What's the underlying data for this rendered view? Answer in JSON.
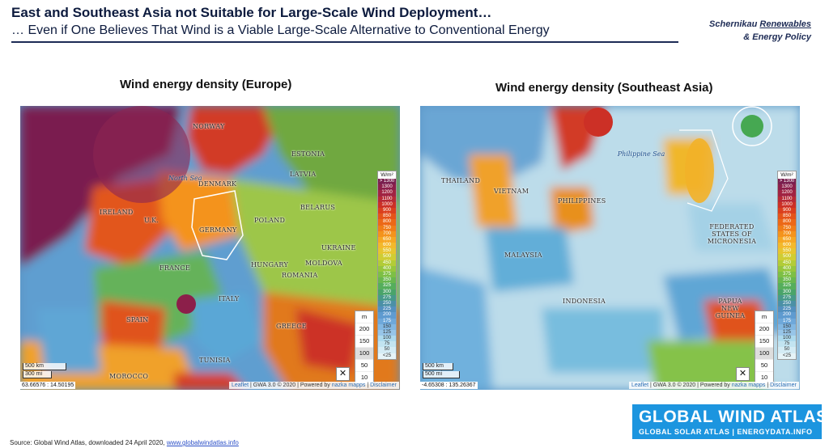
{
  "header": {
    "title": "East and Southeast Asia not Suitable for Large-Scale Wind Deployment…",
    "subtitle": "… Even if One Believes That Wind is a Viable Large-Scale Alternative to Conventional Energy",
    "brand_line1_prefix": "Schernikau ",
    "brand_line1_link": "Renewables",
    "brand_line2": "& Energy Policy"
  },
  "panels": {
    "europe": {
      "title": "Wind energy density (Europe)",
      "labels": [
        "NORWAY",
        "ESTONIA",
        "LATVIA",
        "DENMARK",
        "IRELAND",
        "U.K.",
        "BELARUS",
        "POLAND",
        "GERMANY",
        "UKRAINE",
        "FRANCE",
        "MOLDOVA",
        "HUNGARY",
        "ROMANIA",
        "ITALY",
        "SPAIN",
        "GREECE",
        "TUNISIA",
        "MOROCCO"
      ],
      "seas": [
        "North Sea"
      ],
      "coords": "63.66576 : 14.50195",
      "scale_km": "500 km",
      "scale_mi": "300 mi"
    },
    "asia": {
      "title": "Wind energy density (Southeast Asia)",
      "labels": [
        "THAILAND",
        "VIETNAM",
        "PHILIPPINES",
        "MALAYSIA",
        "INDONESIA",
        "FEDERATED STATES OF MICRONESIA",
        "PAPUA NEW GUINEA"
      ],
      "seas": [
        "Philippine Sea"
      ],
      "coords": "-4.65308 : 135.26367",
      "scale_km": "500 km",
      "scale_mi": "500 mi"
    }
  },
  "legend": {
    "unit": "W/m²",
    "values": [
      "> 1300",
      "1300",
      "1200",
      "1100",
      "1000",
      "900",
      "850",
      "800",
      "750",
      "700",
      "650",
      "600",
      "550",
      "500",
      "450",
      "400",
      "375",
      "350",
      "325",
      "300",
      "275",
      "250",
      "225",
      "200",
      "175",
      "150",
      "125",
      "100",
      "75",
      "50",
      "<25"
    ],
    "colors": [
      "#7a1f4f",
      "#8c1f4a",
      "#a12342",
      "#b82a35",
      "#cc3026",
      "#db3f1d",
      "#e55419",
      "#ec6817",
      "#f07d18",
      "#f4931c",
      "#f6a722",
      "#f3b92b",
      "#e6c52f",
      "#cfcd33",
      "#b2cc37",
      "#96c63c",
      "#7dbf45",
      "#68b74f",
      "#55ae5c",
      "#4aa46a",
      "#47998a",
      "#4b90a6",
      "#5390bf",
      "#5f9bd0",
      "#6ea8da",
      "#82b7e2",
      "#97c5e8",
      "#addaee",
      "#c2e4f1",
      "#d4ecf5",
      "#e6f4f8"
    ]
  },
  "heights": {
    "label": "m",
    "values": [
      "200",
      "150",
      "100",
      "50",
      "10"
    ],
    "selected": "100"
  },
  "attribution": {
    "leaflet": "Leaflet",
    "gwa": "GWA 3.0 © 2020",
    "powered": "Powered by",
    "nazka": "nazka mapps",
    "disclaimer": "Disclaimer"
  },
  "logo": {
    "big": "GLOBAL WIND ATLAS",
    "small": "GLOBAL SOLAR ATLAS | ENERGYDATA.INFO"
  },
  "source": {
    "text": "Source: Global Wind Atlas, downloaded 24 April 2020, ",
    "link": "www.globalwindatlas.info"
  },
  "colors": {
    "navy": "#0d1b3e",
    "logo_blue": "#1c95df"
  }
}
